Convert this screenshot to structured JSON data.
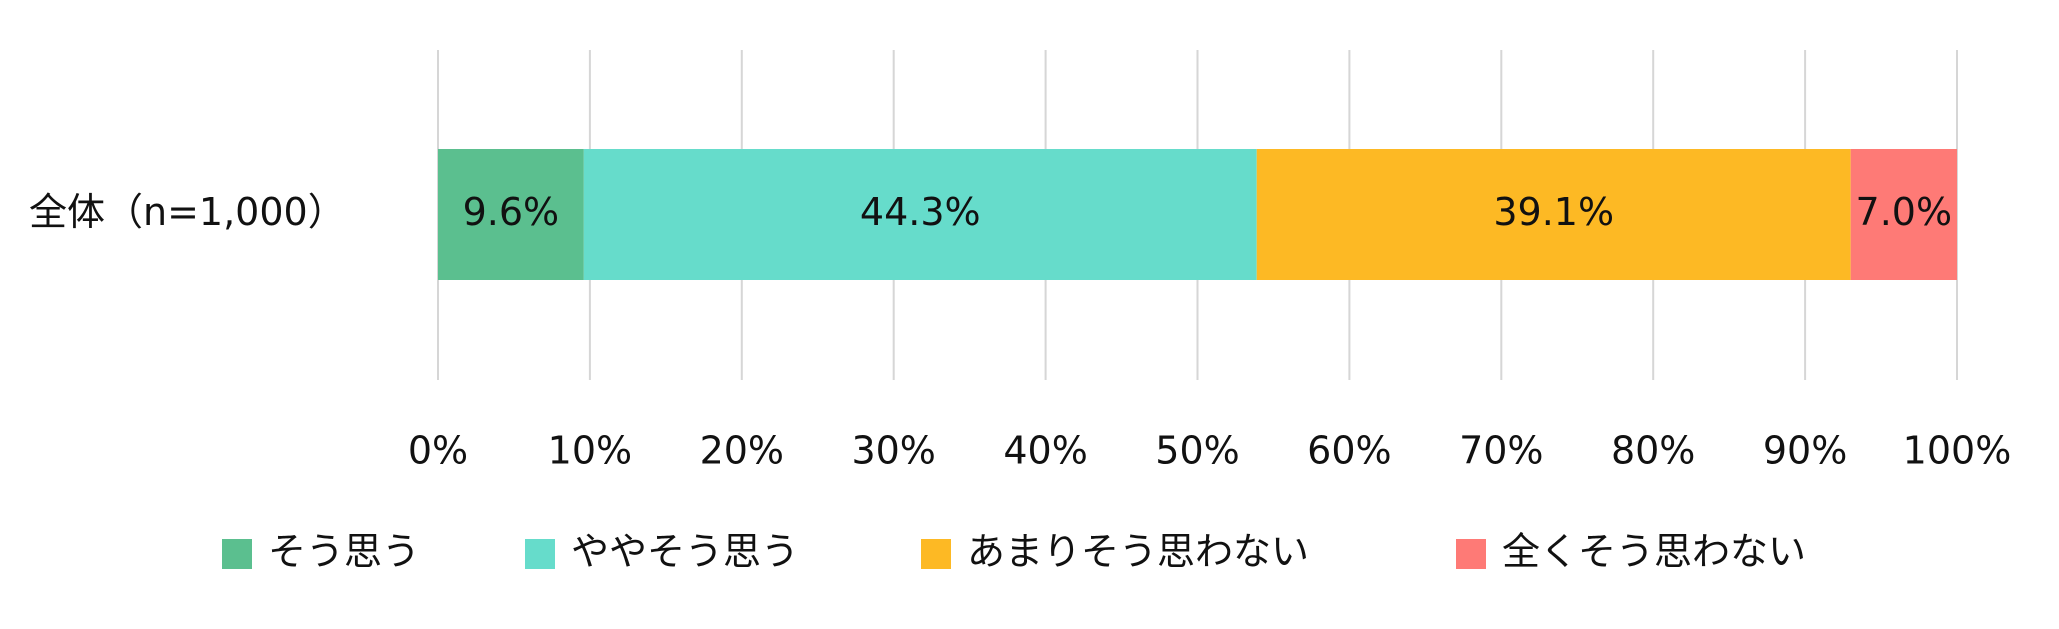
{
  "chart_data": {
    "type": "bar",
    "orientation": "horizontal",
    "stacked": true,
    "categories": [
      "全体（n=1,000）"
    ],
    "series": [
      {
        "name": "そう思う",
        "color": "#5bbf8f",
        "values": [
          9.6
        ],
        "value_labels": [
          "9.6%"
        ]
      },
      {
        "name": "ややそう思う",
        "color": "#66dccb",
        "values": [
          44.3
        ],
        "value_labels": [
          "44.3%"
        ]
      },
      {
        "name": "あまりそう思わない",
        "color": "#fdb924",
        "values": [
          39.1
        ],
        "value_labels": [
          "39.1%"
        ]
      },
      {
        "name": "全くそう思わない",
        "color": "#fe7a76",
        "values": [
          7.0
        ],
        "value_labels": [
          "7.0%"
        ]
      }
    ],
    "xlim": [
      0,
      100
    ],
    "xticks": [
      {
        "value": 0,
        "label": "0%"
      },
      {
        "value": 10,
        "label": "10%"
      },
      {
        "value": 20,
        "label": "20%"
      },
      {
        "value": 30,
        "label": "30%"
      },
      {
        "value": 40,
        "label": "40%"
      },
      {
        "value": 50,
        "label": "50%"
      },
      {
        "value": 60,
        "label": "60%"
      },
      {
        "value": 70,
        "label": "70%"
      },
      {
        "value": 80,
        "label": "80%"
      },
      {
        "value": 90,
        "label": "90%"
      },
      {
        "value": 100,
        "label": "100%"
      }
    ],
    "grid": true,
    "legend": "bottom"
  }
}
